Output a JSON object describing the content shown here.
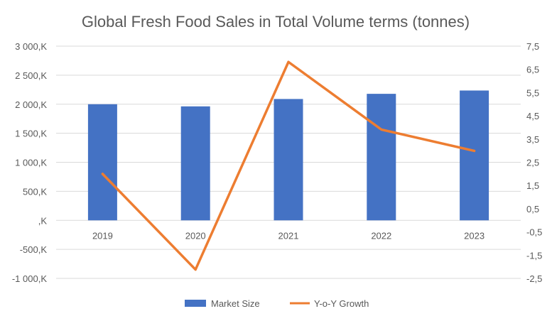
{
  "chart_data": {
    "type": "bar+line",
    "title": "Global Fresh Food Sales in Total Volume terms (tonnes)",
    "categories": [
      "2019",
      "2020",
      "2021",
      "2022",
      "2023"
    ],
    "series": [
      {
        "name": "Market Size",
        "type": "bar",
        "axis": "left",
        "color": "#4472C4",
        "values": [
          2000,
          1963,
          2090,
          2179,
          2236
        ]
      },
      {
        "name": "Y-o-Y Growth",
        "type": "line",
        "axis": "right",
        "color": "#ED7D31",
        "values": [
          2.0,
          -2.12,
          6.82,
          3.91,
          2.99
        ]
      }
    ],
    "left_axis": {
      "ylim": [
        -1000,
        3000
      ],
      "ticks": [
        -1000,
        -500,
        0,
        500,
        1000,
        1500,
        2000,
        2500,
        3000
      ],
      "tick_labels": [
        "-1 000,K",
        "-500,K",
        ",K",
        "500,K",
        "1 000,K",
        "1 500,K",
        "2 000,K",
        "2 500,K",
        "3 000,K"
      ]
    },
    "right_axis": {
      "ylim": [
        -2.5,
        7.5
      ],
      "ticks": [
        -2.5,
        -1.5,
        -0.5,
        0.5,
        1.5,
        2.5,
        3.5,
        4.5,
        5.5,
        6.5,
        7.5
      ],
      "tick_labels": [
        "-2,5",
        "-1,5",
        "-0,5",
        "0,5",
        "1,5",
        "2,5",
        "3,5",
        "4,5",
        "5,5",
        "6,5",
        "7,5"
      ]
    },
    "grid": true,
    "gridline_color": "#D9D9D9",
    "legend_position": "bottom"
  }
}
